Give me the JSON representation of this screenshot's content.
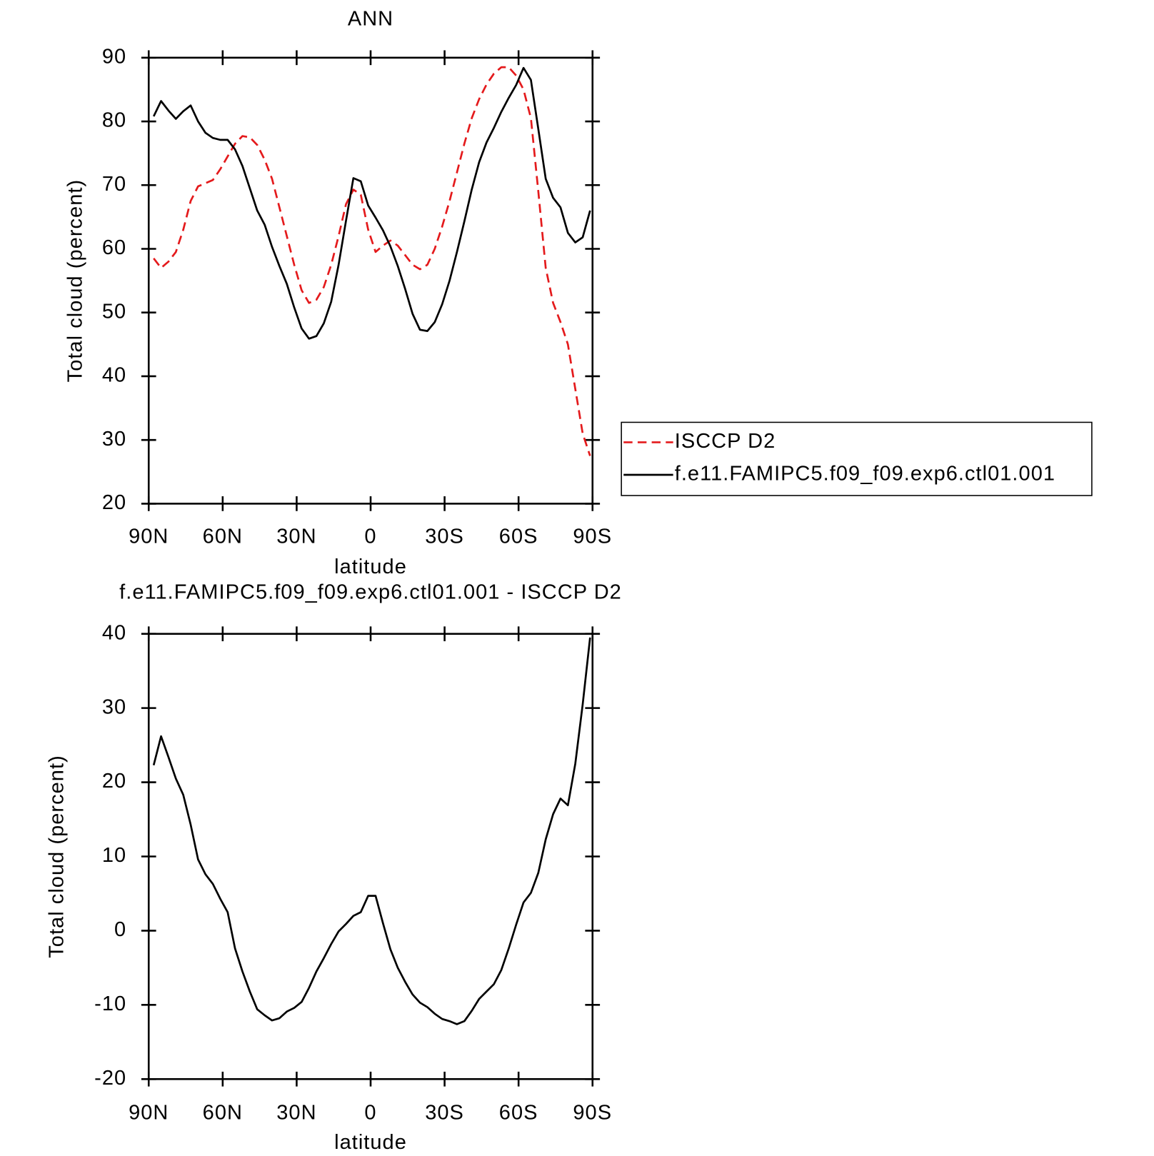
{
  "chart_data": [
    {
      "type": "line",
      "title": "ANN",
      "x_label": "latitude",
      "y_label": "Total cloud (percent)",
      "x": [
        88,
        85,
        82,
        79,
        76,
        73,
        70,
        67,
        64,
        61,
        58,
        55,
        52,
        49,
        46,
        43,
        40,
        37,
        34,
        31,
        28,
        25,
        22,
        19,
        16,
        13,
        10,
        7,
        4,
        1,
        -2,
        -5,
        -8,
        -11,
        -14,
        -17,
        -20,
        -23,
        -26,
        -29,
        -32,
        -35,
        -38,
        -41,
        -44,
        -47,
        -50,
        -53,
        -56,
        -59,
        -62,
        -65,
        -68,
        -71,
        -74,
        -77,
        -80,
        -83,
        -86,
        -89
      ],
      "series": [
        {
          "name": "ISCCP D2",
          "color": "#e41a1c",
          "dash": true,
          "values": [
            58.5,
            57,
            58,
            59.5,
            63,
            67.5,
            69.8,
            70.3,
            70.8,
            72.5,
            74.5,
            76.5,
            77.7,
            77.5,
            76.3,
            74,
            71,
            66.5,
            62,
            57.5,
            53.5,
            51.5,
            52,
            54,
            57.5,
            62,
            67,
            69.3,
            68.5,
            63,
            59.5,
            60.5,
            61.3,
            60.5,
            59,
            57.5,
            56.8,
            57.5,
            60,
            63.5,
            67.5,
            72,
            76.5,
            80.5,
            83.5,
            85.8,
            87.5,
            88.5,
            88.5,
            87.2,
            85,
            80.5,
            69,
            57,
            51.5,
            48.5,
            45,
            38,
            31,
            27.5
          ]
        },
        {
          "name": "f.e11.FAMIPC5.f09_f09.exp6.ctl01.001",
          "color": "#000000",
          "dash": false,
          "values": [
            80.8,
            83.2,
            81.7,
            80.4,
            81.6,
            82.5,
            80,
            78.2,
            77.4,
            77.1,
            77.1,
            75.6,
            73,
            69.5,
            66,
            63.8,
            60.3,
            57.3,
            54.5,
            50.8,
            47.5,
            45.9,
            46.3,
            48.3,
            51.7,
            57.5,
            64.4,
            71.1,
            70.6,
            66.8,
            64.9,
            62.9,
            60.4,
            57.3,
            53.7,
            49.8,
            47.3,
            47.1,
            48.5,
            51.3,
            55,
            59.5,
            64.3,
            69.3,
            73.6,
            76.7,
            79,
            81.5,
            83.7,
            85.7,
            88.4,
            86.5,
            78.8,
            71,
            68,
            66.5,
            62.5,
            61,
            61.8,
            66
          ]
        }
      ],
      "xlim": [
        90,
        -90
      ],
      "xticks": [
        {
          "value": 90,
          "label": "90N"
        },
        {
          "value": 60,
          "label": "60N"
        },
        {
          "value": 30,
          "label": "30N"
        },
        0,
        {
          "value": -30,
          "label": "30S"
        },
        {
          "value": -60,
          "label": "60S"
        },
        {
          "value": -90,
          "label": "90S"
        }
      ],
      "ylim": [
        20,
        90
      ],
      "yticks": [
        20,
        30,
        40,
        50,
        60,
        70,
        80,
        90
      ],
      "legend": "right"
    },
    {
      "type": "line",
      "title": "f.e11.FAMIPC5.f09_f09.exp6.ctl01.001 - ISCCP D2",
      "x_label": "latitude",
      "y_label": "Total cloud (percent)",
      "x": [
        88,
        85,
        82,
        79,
        76,
        73,
        70,
        67,
        64,
        61,
        58,
        55,
        52,
        49,
        46,
        43,
        40,
        37,
        34,
        31,
        28,
        25,
        22,
        19,
        16,
        13,
        10,
        7,
        4,
        1,
        -2,
        -5,
        -8,
        -11,
        -14,
        -17,
        -20,
        -23,
        -26,
        -29,
        -32,
        -35,
        -38,
        -41,
        -44,
        -47,
        -50,
        -53,
        -56,
        -59,
        -62,
        -65,
        -68,
        -71,
        -74,
        -77,
        -80,
        -83,
        -86,
        -89
      ],
      "series": [
        {
          "color": "#000000",
          "dash": false,
          "values": [
            22.3,
            26.2,
            23.4,
            20.5,
            18.3,
            14.3,
            9.6,
            7.6,
            6.3,
            4.3,
            2.5,
            -2.4,
            -5.5,
            -8.2,
            -10.6,
            -11.4,
            -12.1,
            -11.8,
            -10.9,
            -10.4,
            -9.6,
            -7.7,
            -5.5,
            -3.7,
            -1.8,
            -0.1,
            0.9,
            2,
            2.5,
            4.7,
            4.7,
            1,
            -2.5,
            -5,
            -6.9,
            -8.6,
            -9.7,
            -10.3,
            -11.2,
            -11.9,
            -12.2,
            -12.6,
            -12.2,
            -10.8,
            -9.2,
            -8.2,
            -7.2,
            -5.3,
            -2.4,
            0.8,
            3.8,
            5.1,
            7.8,
            12.3,
            15.7,
            17.8,
            16.9,
            22.5,
            30.5,
            39.5
          ]
        }
      ],
      "xlim": [
        90,
        -90
      ],
      "xticks": [
        {
          "value": 90,
          "label": "90N"
        },
        {
          "value": 60,
          "label": "60N"
        },
        {
          "value": 30,
          "label": "30N"
        },
        0,
        {
          "value": -30,
          "label": "30S"
        },
        {
          "value": -60,
          "label": "60S"
        },
        {
          "value": -90,
          "label": "90S"
        }
      ],
      "ylim": [
        -20,
        40
      ],
      "yticks": [
        -20,
        -10,
        0,
        10,
        20,
        30,
        40
      ]
    }
  ]
}
